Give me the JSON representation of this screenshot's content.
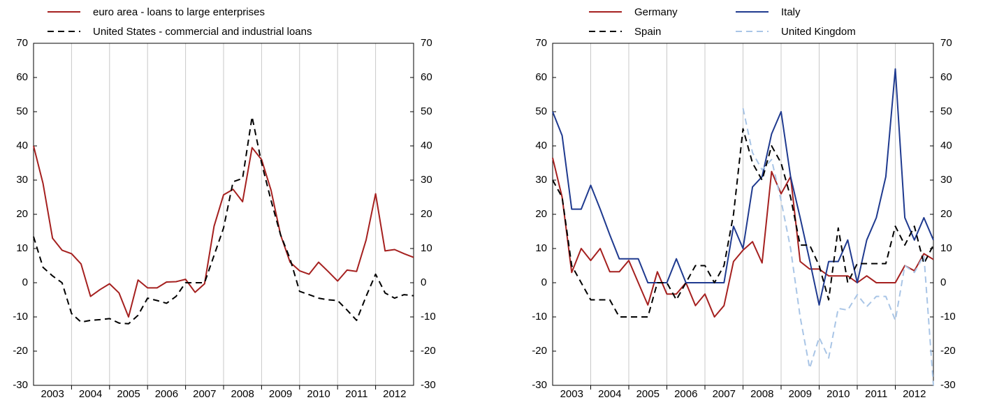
{
  "chart_data": [
    {
      "type": "line",
      "x": [
        2003,
        2003.25,
        2003.5,
        2003.75,
        2004,
        2004.25,
        2004.5,
        2004.75,
        2005,
        2005.25,
        2005.5,
        2005.75,
        2006,
        2006.25,
        2006.5,
        2006.75,
        2007,
        2007.25,
        2007.5,
        2007.75,
        2008,
        2008.25,
        2008.5,
        2008.75,
        2009,
        2009.25,
        2009.5,
        2009.75,
        2010,
        2010.25,
        2010.5,
        2010.75,
        2011,
        2011.25,
        2011.5,
        2011.75,
        2012,
        2012.25,
        2012.5,
        2012.75,
        2013
      ],
      "xlim": [
        2003,
        2013
      ],
      "xticks": [
        2003,
        2004,
        2005,
        2006,
        2007,
        2008,
        2009,
        2010,
        2011,
        2012
      ],
      "ylim": [
        -30,
        70
      ],
      "yticks": [
        -30,
        -20,
        -10,
        0,
        10,
        20,
        30,
        40,
        50,
        60,
        70
      ],
      "grid": true,
      "series": [
        {
          "name": "euro area - loans to large enterprises",
          "color": "#a5201f",
          "dash": false,
          "values": [
            40,
            29,
            13,
            9.5,
            8.5,
            5.5,
            -4,
            -2,
            -0.3,
            -3,
            -10,
            0.8,
            -1.5,
            -1.5,
            0.2,
            0.3,
            1,
            -2.8,
            -0.3,
            16.5,
            25.7,
            27.3,
            23.7,
            39.5,
            36,
            27,
            14,
            6,
            3.5,
            2.5,
            6,
            3.3,
            0.5,
            3.7,
            3.3,
            12.5,
            26,
            9.3,
            9.7,
            8.5,
            7.4
          ]
        },
        {
          "name": "United States - commercial and industrial loans",
          "color": "#000000",
          "dash": true,
          "values": [
            13.5,
            4.5,
            2,
            0,
            -9,
            -11.5,
            -11,
            -10.8,
            -10.5,
            -11.8,
            -12,
            -9.5,
            -4.5,
            -5.2,
            -6,
            -4,
            0,
            0,
            0,
            8,
            16,
            29.5,
            30.5,
            48.5,
            35,
            24,
            14,
            7,
            -2.5,
            -3.5,
            -4.5,
            -5,
            -5.2,
            -8,
            -11,
            -4,
            2.5,
            -3,
            -4.5,
            -3.5,
            -3.8
          ]
        }
      ]
    },
    {
      "type": "line",
      "x": [
        2003,
        2003.25,
        2003.5,
        2003.75,
        2004,
        2004.25,
        2004.5,
        2004.75,
        2005,
        2005.25,
        2005.5,
        2005.75,
        2006,
        2006.25,
        2006.5,
        2006.75,
        2007,
        2007.25,
        2007.5,
        2007.75,
        2008,
        2008.25,
        2008.5,
        2008.75,
        2009,
        2009.25,
        2009.5,
        2009.75,
        2010,
        2010.25,
        2010.5,
        2010.75,
        2011,
        2011.25,
        2011.5,
        2011.75,
        2012,
        2012.25,
        2012.5,
        2012.75,
        2013
      ],
      "xlim": [
        2003,
        2013
      ],
      "xticks": [
        2003,
        2004,
        2005,
        2006,
        2007,
        2008,
        2009,
        2010,
        2011,
        2012
      ],
      "ylim": [
        -30,
        70
      ],
      "yticks": [
        -30,
        -20,
        -10,
        0,
        10,
        20,
        30,
        40,
        50,
        60,
        70
      ],
      "grid": true,
      "series": [
        {
          "name": "Germany",
          "color": "#a5201f",
          "dash": false,
          "values": [
            36.5,
            25,
            3,
            10,
            6.5,
            10,
            3.2,
            3.2,
            6.5,
            0,
            -6.5,
            3.2,
            -3.3,
            -3.3,
            0,
            -6.7,
            -3.3,
            -10,
            -6.7,
            6.2,
            9.5,
            12,
            5.8,
            32.5,
            26,
            31,
            6.2,
            4,
            4,
            2,
            2,
            2,
            0,
            2,
            0,
            0,
            0,
            5,
            3.5,
            8.5,
            6.8
          ]
        },
        {
          "name": "Italy",
          "color": "#1f3a8f",
          "dash": false,
          "values": [
            50,
            43,
            21.5,
            21.5,
            28.5,
            21.5,
            14,
            7,
            7,
            7,
            0,
            0,
            0,
            7,
            0,
            0,
            0,
            0,
            0,
            16.5,
            10,
            28,
            31,
            43.5,
            50,
            31,
            19,
            6.5,
            -6.5,
            6.2,
            6.2,
            12.5,
            0,
            12.5,
            19,
            31,
            62.5,
            19,
            12.5,
            19,
            12.5
          ]
        },
        {
          "name": "Spain",
          "color": "#000000",
          "dash": true,
          "values": [
            30,
            25,
            5,
            0,
            -5,
            -5,
            -5,
            -10,
            -10,
            -10,
            -10,
            0,
            0,
            -5,
            0,
            5,
            5,
            0,
            5,
            20,
            45,
            35,
            30,
            40,
            35,
            25,
            11,
            11,
            5,
            -5,
            16,
            0,
            5.6,
            5.6,
            5.6,
            5.6,
            16.5,
            11,
            16.5,
            5.6,
            11
          ]
        },
        {
          "name": "United Kingdom",
          "color": "#a9c5e6",
          "dash": true,
          "values": [
            null,
            null,
            null,
            null,
            null,
            null,
            null,
            null,
            null,
            null,
            null,
            null,
            null,
            null,
            null,
            null,
            null,
            null,
            null,
            null,
            51,
            38,
            33,
            36,
            24,
            10,
            -10,
            -25,
            -16,
            -22,
            -7.5,
            -8,
            -3.5,
            -7,
            -4,
            -4,
            -11,
            5,
            3,
            8,
            -30
          ]
        }
      ]
    }
  ]
}
